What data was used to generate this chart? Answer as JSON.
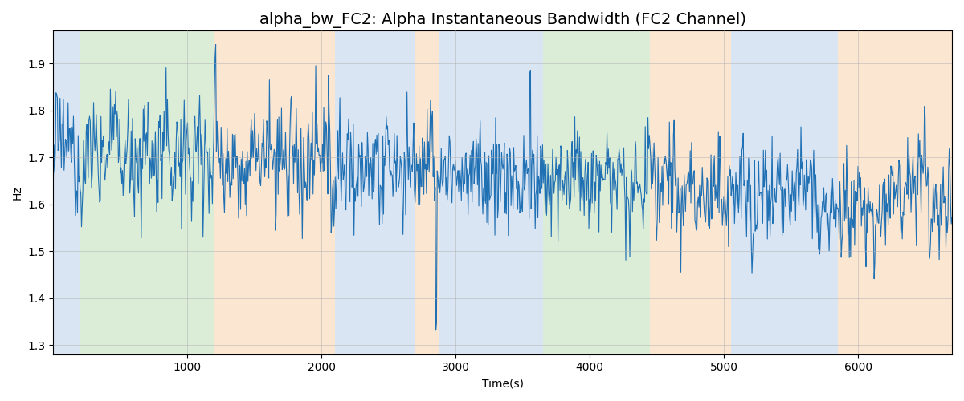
{
  "title": "alpha_bw_FC2: Alpha Instantaneous Bandwidth (FC2 Channel)",
  "xlabel": "Time(s)",
  "ylabel": "Hz",
  "ylim": [
    1.28,
    1.97
  ],
  "xlim": [
    0,
    6700
  ],
  "line_color": "#2070b4",
  "line_width": 0.8,
  "bg_regions": [
    {
      "xmin": 0,
      "xmax": 200,
      "color": "#aec6e8",
      "alpha": 0.45
    },
    {
      "xmin": 200,
      "xmax": 1200,
      "color": "#b2d8a8",
      "alpha": 0.45
    },
    {
      "xmin": 1200,
      "xmax": 2100,
      "color": "#f5c99a",
      "alpha": 0.45
    },
    {
      "xmin": 2100,
      "xmax": 2700,
      "color": "#aec6e8",
      "alpha": 0.45
    },
    {
      "xmin": 2700,
      "xmax": 2900,
      "color": "#f5c99a",
      "alpha": 0.45
    },
    {
      "xmin": 2900,
      "xmax": 3100,
      "color": "#aec6e8",
      "alpha": 0.45
    },
    {
      "xmin": 3100,
      "xmax": 3250,
      "color": "#b2d8a8",
      "alpha": 0.45
    },
    {
      "xmin": 3250,
      "xmax": 3700,
      "color": "#b2d8a8",
      "alpha": 0.45
    },
    {
      "xmin": 3700,
      "xmax": 3800,
      "color": "#b2d8a8",
      "alpha": 0.45
    },
    {
      "xmin": 3800,
      "xmax": 4450,
      "color": "#b2d8a8",
      "alpha": 0.45
    },
    {
      "xmin": 4450,
      "xmax": 5050,
      "color": "#f5c99a",
      "alpha": 0.45
    },
    {
      "xmin": 5050,
      "xmax": 5800,
      "color": "#aec6e8",
      "alpha": 0.45
    },
    {
      "xmin": 5800,
      "xmax": 6000,
      "color": "#aec6e8",
      "alpha": 0.45
    },
    {
      "xmin": 6000,
      "xmax": 6700,
      "color": "#f5c99a",
      "alpha": 0.45
    }
  ],
  "xticks": [
    1000,
    2000,
    3000,
    4000,
    5000,
    6000
  ],
  "yticks": [
    1.3,
    1.4,
    1.5,
    1.6,
    1.7,
    1.8,
    1.9
  ],
  "grid_color": "#b0b0b0",
  "grid_alpha": 0.7,
  "title_fontsize": 14,
  "signal_seed": 12345,
  "n_points": 1340,
  "x_max": 6700,
  "start_mean": 1.72,
  "end_mean": 1.6,
  "noise_std": 0.09
}
